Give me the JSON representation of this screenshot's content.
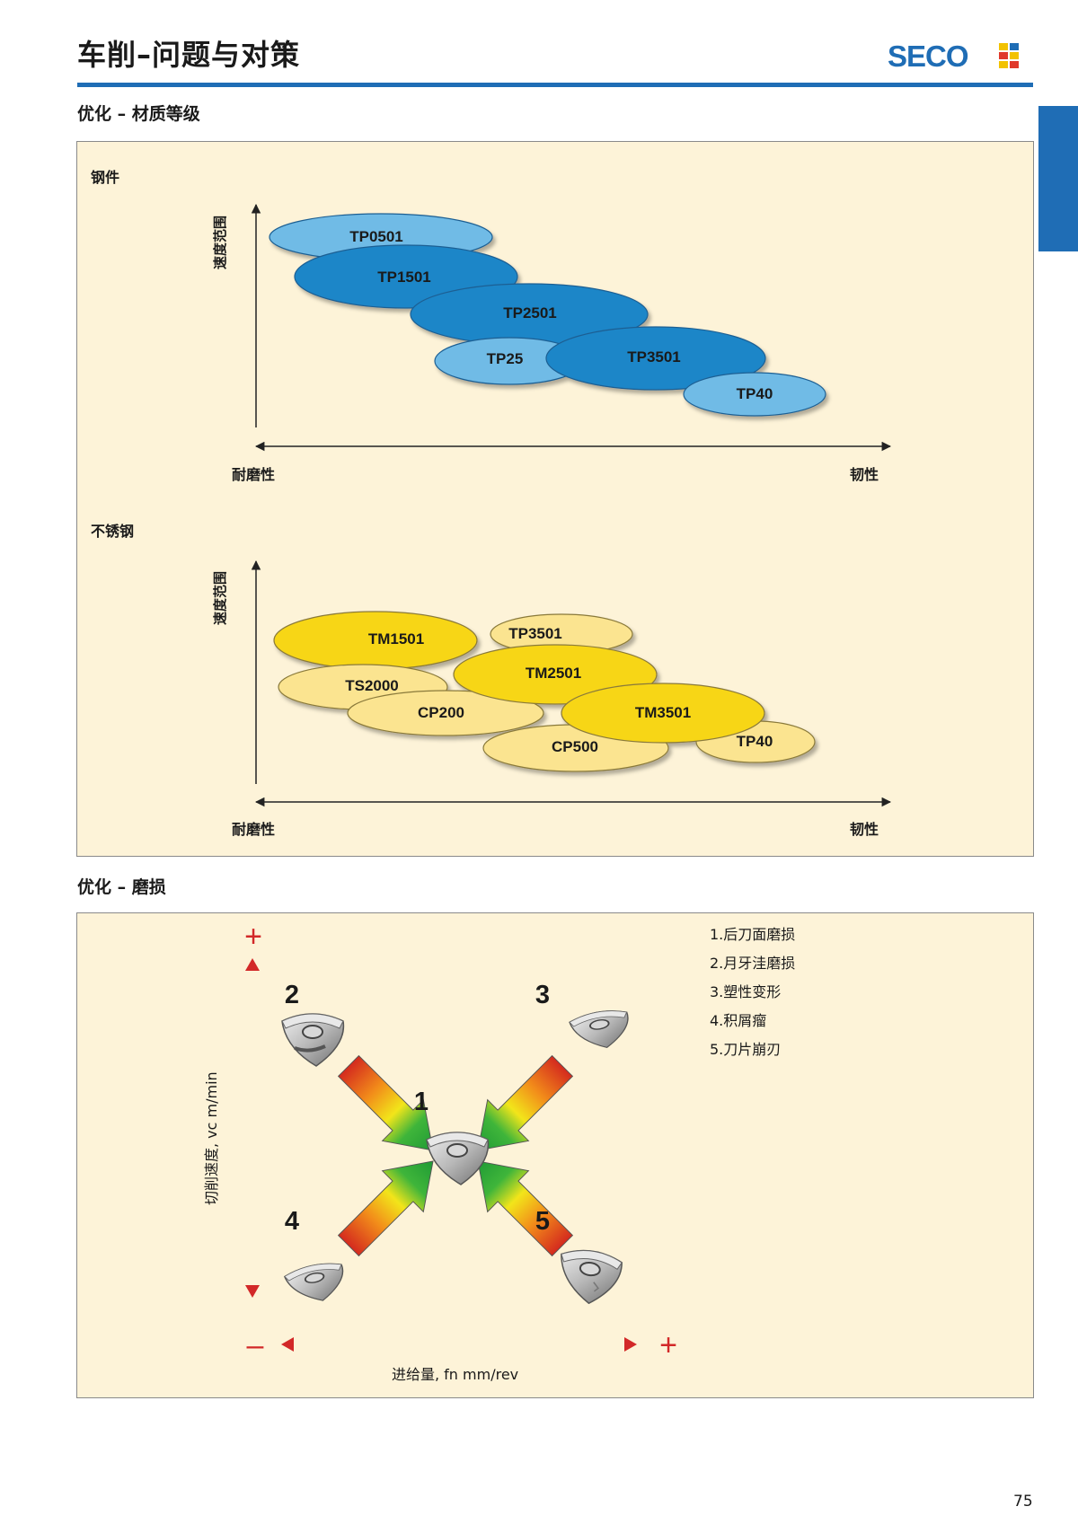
{
  "header": {
    "title": "车削–问题与对策",
    "brand": "SECO",
    "brand_color": "#1f6db5"
  },
  "section1": {
    "title": "优化 – 材质等级",
    "steel": {
      "label": "钢件",
      "y_axis": "速度范围",
      "x_left": "耐磨性",
      "x_right": "韧性",
      "grades": [
        "TP0501",
        "TP1501",
        "TP2501",
        "TP25",
        "TP3501",
        "TP40"
      ]
    },
    "stainless": {
      "label": "不锈钢",
      "y_axis": "速度范围",
      "x_left": "耐磨性",
      "x_right": "韧性",
      "grades": [
        "TM1501",
        "TP3501",
        "TM2501",
        "TS2000",
        "CP200",
        "TM3501",
        "CP500",
        "TP40"
      ]
    }
  },
  "section2": {
    "title": "优化 – 磨损",
    "y_axis_label": "切削速度, vc m/min",
    "x_axis_label": "进给量, fn mm/rev",
    "plus": "+",
    "minus": "–",
    "numbers": [
      "1",
      "2",
      "3",
      "4",
      "5"
    ],
    "legend": [
      "1.后刀面磨损",
      "2.月牙洼磨损",
      "3.塑性变形",
      "4.积屑瘤",
      "5.刀片崩刃"
    ]
  },
  "page_number": "75"
}
